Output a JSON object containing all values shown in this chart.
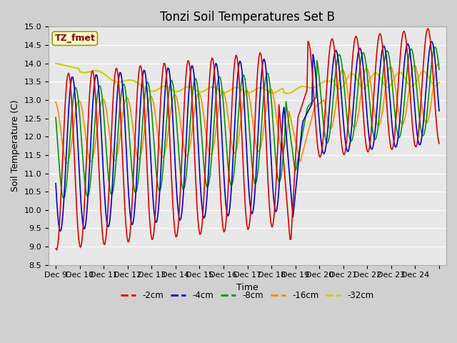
{
  "title": "Tonzi Soil Temperatures Set B",
  "xlabel": "Time",
  "ylabel": "Soil Temperature (C)",
  "ylim": [
    8.5,
    15.0
  ],
  "yticks": [
    8.5,
    9.0,
    9.5,
    10.0,
    10.5,
    11.0,
    11.5,
    12.0,
    12.5,
    13.0,
    13.5,
    14.0,
    14.5,
    15.0
  ],
  "xtick_positions": [
    0,
    1,
    2,
    3,
    4,
    5,
    6,
    7,
    8,
    9,
    10,
    11,
    12,
    13,
    14,
    15,
    16
  ],
  "xtick_labels": [
    "Dec 9",
    "Dec 10",
    "Dec 11",
    "Dec 12",
    "Dec 13",
    "Dec 14",
    "Dec 15",
    "Dec 16",
    "Dec 17",
    "Dec 18",
    "Dec 19",
    "Dec 20",
    "Dec 21",
    "Dec 22",
    "Dec 23",
    "Dec 24",
    ""
  ],
  "series_colors": [
    "#dd0000",
    "#0000cc",
    "#009900",
    "#ff8800",
    "#cccc00"
  ],
  "series_labels": [
    "-2cm",
    "-4cm",
    "-8cm",
    "-16cm",
    "-32cm"
  ],
  "annotation_text": "TZ_fmet",
  "annotation_color": "#880000",
  "annotation_bg": "#ffffcc",
  "fig_bg": "#d0d0d0",
  "plot_bg": "#e8e8e8",
  "grid_color": "#ffffff",
  "title_fontsize": 12,
  "label_fontsize": 9,
  "tick_fontsize": 8
}
